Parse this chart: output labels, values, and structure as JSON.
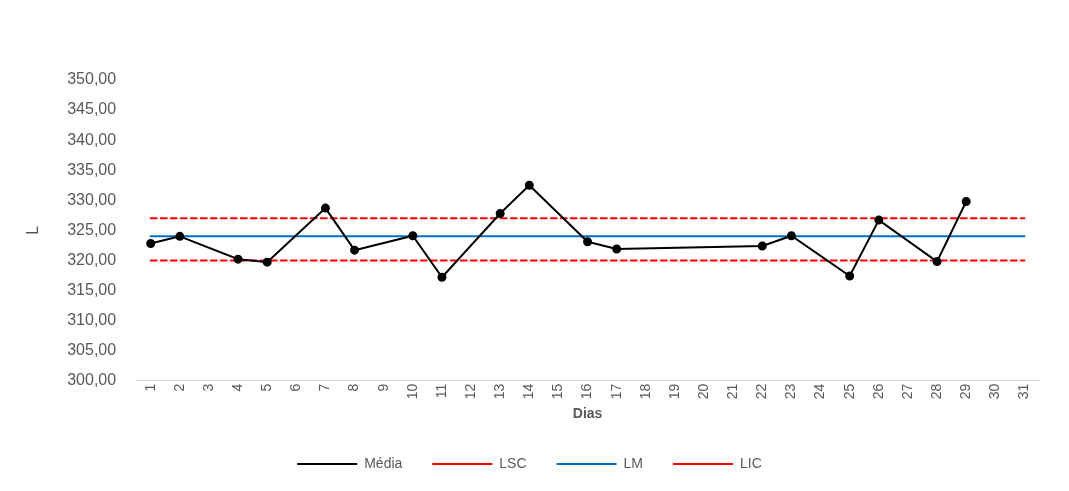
{
  "chart_data": {
    "type": "line",
    "xlabel": "Dias",
    "ylabel": "L",
    "categories": [
      "1",
      "2",
      "3",
      "4",
      "5",
      "6",
      "7",
      "8",
      "9",
      "10",
      "11",
      "12",
      "13",
      "14",
      "15",
      "16",
      "17",
      "18",
      "19",
      "20",
      "21",
      "22",
      "23",
      "24",
      "25",
      "26",
      "27",
      "28",
      "29",
      "30",
      "31"
    ],
    "series": [
      {
        "name": "Média",
        "color": "#000000",
        "marker": "circle",
        "line_style": "solid",
        "values": [
          322.8,
          324.0,
          null,
          320.2,
          319.7,
          null,
          328.7,
          321.7,
          null,
          324.1,
          317.2,
          null,
          327.8,
          332.5,
          null,
          323.1,
          321.9,
          null,
          null,
          null,
          null,
          322.4,
          324.1,
          null,
          317.4,
          326.7,
          null,
          319.8,
          329.8,
          null,
          null
        ]
      },
      {
        "name": "LSC",
        "color": "#ff0000",
        "marker": "none",
        "line_style": "dashed",
        "values": [
          327.0,
          327.0,
          327.0,
          327.0,
          327.0,
          327.0,
          327.0,
          327.0,
          327.0,
          327.0,
          327.0,
          327.0,
          327.0,
          327.0,
          327.0,
          327.0,
          327.0,
          327.0,
          327.0,
          327.0,
          327.0,
          327.0,
          327.0,
          327.0,
          327.0,
          327.0,
          327.0,
          327.0,
          327.0,
          327.0,
          327.0
        ]
      },
      {
        "name": "LM",
        "color": "#0070c0",
        "marker": "none",
        "line_style": "solid",
        "values": [
          324.0,
          324.0,
          324.0,
          324.0,
          324.0,
          324.0,
          324.0,
          324.0,
          324.0,
          324.0,
          324.0,
          324.0,
          324.0,
          324.0,
          324.0,
          324.0,
          324.0,
          324.0,
          324.0,
          324.0,
          324.0,
          324.0,
          324.0,
          324.0,
          324.0,
          324.0,
          324.0,
          324.0,
          324.0,
          324.0,
          324.0
        ]
      },
      {
        "name": "LIC",
        "color": "#ff0000",
        "marker": "none",
        "line_style": "dashed",
        "values": [
          320.0,
          320.0,
          320.0,
          320.0,
          320.0,
          320.0,
          320.0,
          320.0,
          320.0,
          320.0,
          320.0,
          320.0,
          320.0,
          320.0,
          320.0,
          320.0,
          320.0,
          320.0,
          320.0,
          320.0,
          320.0,
          320.0,
          320.0,
          320.0,
          320.0,
          320.0,
          320.0,
          320.0,
          320.0,
          320.0,
          320.0
        ]
      }
    ],
    "ylim": [
      300,
      350
    ],
    "yticks": [
      {
        "value": 300,
        "label": "300,00"
      },
      {
        "value": 305,
        "label": "305,00"
      },
      {
        "value": 310,
        "label": "310,00"
      },
      {
        "value": 315,
        "label": "315,00"
      },
      {
        "value": 320,
        "label": "320,00"
      },
      {
        "value": 325,
        "label": "325,00"
      },
      {
        "value": 330,
        "label": "330,00"
      },
      {
        "value": 335,
        "label": "335,00"
      },
      {
        "value": 340,
        "label": "340,00"
      },
      {
        "value": 345,
        "label": "345,00"
      },
      {
        "value": 350,
        "label": "350,00"
      }
    ],
    "grid": false,
    "legend": "bottom"
  }
}
